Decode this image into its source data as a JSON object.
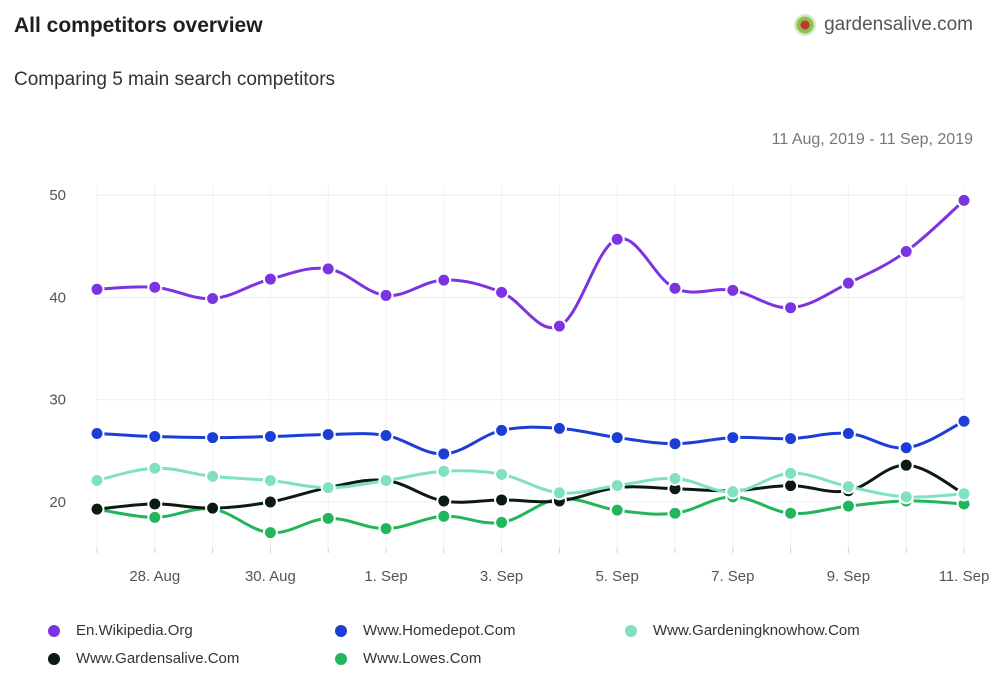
{
  "header": {
    "title": "All competitors overview",
    "subtitle": "Comparing 5 main search competitors",
    "domain": "gardensalive.com",
    "favicon_icon": "gardensalive-favicon-icon",
    "date_range": "11 Aug, 2019 - 11 Sep, 2019"
  },
  "chart_data": {
    "type": "line",
    "x": [
      "27. Aug",
      "28. Aug",
      "29. Aug",
      "30. Aug",
      "31. Aug",
      "1. Sep",
      "2. Sep",
      "3. Sep",
      "4. Sep",
      "5. Sep",
      "6. Sep",
      "7. Sep",
      "8. Sep",
      "9. Sep",
      "10. Sep",
      "11. Sep"
    ],
    "x_tick_labels": [
      "28. Aug",
      "30. Aug",
      "1. Sep",
      "3. Sep",
      "5. Sep",
      "7. Sep",
      "9. Sep",
      "11. Sep"
    ],
    "y_ticks": [
      20,
      30,
      40,
      50
    ],
    "ylim": [
      15.5,
      51
    ],
    "grid": true,
    "legend_position": "bottom",
    "series": [
      {
        "name": "En.Wikipedia.Org",
        "color": "#7b35e0",
        "values": [
          40.8,
          41.0,
          39.9,
          41.8,
          42.8,
          40.2,
          41.7,
          40.5,
          37.2,
          45.7,
          40.9,
          40.7,
          39.0,
          41.4,
          44.5,
          49.5
        ]
      },
      {
        "name": "Www.Homedepot.Com",
        "color": "#1b3fd6",
        "values": [
          26.7,
          26.4,
          26.3,
          26.4,
          26.6,
          26.5,
          24.7,
          27.0,
          27.2,
          26.3,
          25.7,
          26.3,
          26.2,
          26.7,
          25.3,
          27.9
        ]
      },
      {
        "name": "Www.Gardeningknowhow.Com",
        "color": "#7fe0c4",
        "values": [
          22.1,
          23.3,
          22.5,
          22.1,
          21.4,
          22.1,
          23.0,
          22.7,
          20.9,
          21.6,
          22.3,
          21.0,
          22.8,
          21.5,
          20.5,
          20.8
        ]
      },
      {
        "name": "Www.Gardensalive.Com",
        "color": "#0b1a12",
        "values": [
          19.3,
          19.8,
          19.4,
          20.0,
          21.4,
          22.1,
          20.1,
          20.2,
          20.1,
          21.4,
          21.3,
          21.1,
          21.6,
          21.1,
          23.6,
          20.8
        ]
      },
      {
        "name": "Www.Lowes.Com",
        "color": "#22b55b",
        "values": [
          19.3,
          18.5,
          19.3,
          17.0,
          18.4,
          17.4,
          18.6,
          18.0,
          20.3,
          19.2,
          18.9,
          20.5,
          18.9,
          19.6,
          20.1,
          19.8
        ]
      }
    ]
  }
}
